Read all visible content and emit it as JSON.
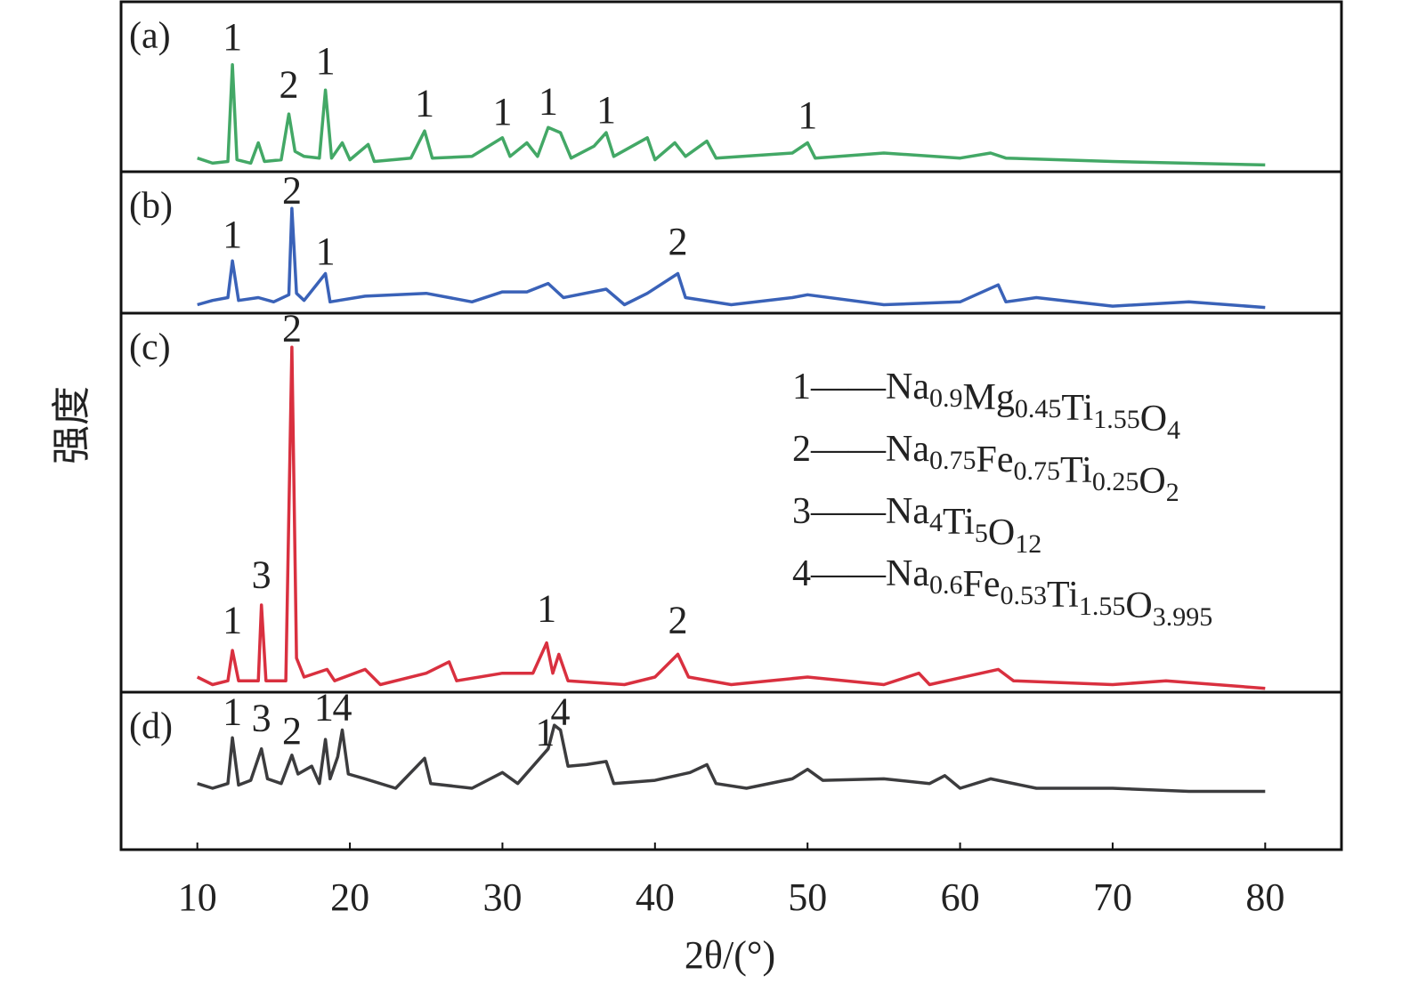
{
  "chart_data": {
    "type": "line",
    "xlabel": "2θ/(°)",
    "ylabel": "强度",
    "xlim": [
      5,
      85
    ],
    "xticks": [
      10,
      20,
      30,
      40,
      50,
      60,
      70,
      80
    ],
    "ylim": [
      0,
      100
    ],
    "panels": [
      {
        "label": "(a)",
        "color": "#43a866",
        "x": [
          10,
          11,
          12,
          12.3,
          12.6,
          13.5,
          14,
          14.4,
          15.5,
          16,
          16.4,
          17,
          18,
          18.4,
          18.8,
          19.5,
          20,
          21.2,
          21.6,
          24,
          24.9,
          25.4,
          28,
          30,
          30.5,
          31.6,
          32.3,
          33,
          33.8,
          34.5,
          36,
          36.8,
          37.3,
          39.5,
          40,
          41.3,
          42,
          43.4,
          44,
          49,
          50,
          50.5,
          55,
          60,
          62,
          63,
          70,
          80
        ],
        "values": [
          8,
          5,
          6,
          63,
          7,
          5,
          17,
          6,
          7,
          34,
          12,
          9,
          8,
          48,
          8,
          17,
          7,
          16,
          6,
          8,
          24,
          8,
          9,
          20,
          9,
          17,
          9,
          26,
          23,
          8,
          15,
          23,
          9,
          20,
          7,
          17,
          9,
          18,
          8,
          11,
          17,
          8,
          11,
          8,
          11,
          8,
          6,
          4
        ],
        "annotations": [
          {
            "text": "1",
            "x": 12.3,
            "y": 77
          },
          {
            "text": "2",
            "x": 16,
            "y": 49
          },
          {
            "text": "1",
            "x": 18.4,
            "y": 63
          },
          {
            "text": "1",
            "x": 24.9,
            "y": 38
          },
          {
            "text": "1",
            "x": 30,
            "y": 33
          },
          {
            "text": "1",
            "x": 33,
            "y": 39
          },
          {
            "text": "1",
            "x": 36.8,
            "y": 34
          },
          {
            "text": "1",
            "x": 50,
            "y": 31
          }
        ]
      },
      {
        "label": "(b)",
        "color": "#3a62b8",
        "x": [
          10,
          11,
          12,
          12.3,
          12.7,
          14,
          15,
          16,
          16.2,
          16.5,
          17,
          18.4,
          18.7,
          21,
          25,
          28,
          30,
          31.6,
          33,
          34,
          36.8,
          38,
          39.5,
          41.5,
          42,
          45,
          49,
          50,
          55,
          60,
          62.5,
          63,
          65,
          70,
          75,
          80
        ],
        "values": [
          6,
          9,
          11,
          37,
          9,
          11,
          8,
          13,
          74,
          14,
          9,
          28,
          8,
          12,
          14,
          8,
          15,
          15,
          21,
          11,
          17,
          6,
          14,
          28,
          11,
          6,
          11,
          13,
          6,
          8,
          20,
          8,
          11,
          5,
          8,
          4
        ],
        "annotations": [
          {
            "text": "1",
            "x": 12.3,
            "y": 53
          },
          {
            "text": "2",
            "x": 16.2,
            "y": 84
          },
          {
            "text": "1",
            "x": 18.4,
            "y": 41
          },
          {
            "text": "2",
            "x": 41.5,
            "y": 48
          }
        ]
      },
      {
        "label": "(c)",
        "color": "#d9303f",
        "x": [
          10,
          11,
          12,
          12.3,
          12.7,
          14,
          14.2,
          14.5,
          15.8,
          16.2,
          16.5,
          17,
          18.5,
          19,
          21,
          22,
          25,
          26.5,
          27,
          30,
          32,
          32.9,
          33.3,
          33.7,
          34.3,
          38,
          40,
          41.5,
          42.2,
          45,
          50,
          55,
          57.3,
          58,
          62.5,
          63.5,
          70,
          73.5,
          80
        ],
        "values": [
          4,
          2,
          3,
          11,
          3,
          3,
          23,
          3,
          3,
          91,
          9,
          4,
          6,
          3,
          6,
          2,
          5,
          8,
          3,
          5,
          5,
          13,
          5,
          10,
          3,
          2,
          4,
          10,
          4,
          2,
          4,
          2,
          5,
          2,
          6,
          3,
          2,
          3,
          1
        ],
        "annotations": [
          {
            "text": "1",
            "x": 12.3,
            "y": 18
          },
          {
            "text": "3",
            "x": 14.2,
            "y": 30
          },
          {
            "text": "2",
            "x": 16.2,
            "y": 95
          },
          {
            "text": "1",
            "x": 32.9,
            "y": 21
          },
          {
            "text": "2",
            "x": 41.5,
            "y": 18
          }
        ],
        "legend": [
          {
            "label": "1——",
            "symbols": [
              "Na",
              "Mg",
              "Ti",
              "O"
            ],
            "subscripts": [
              "0.9",
              "0.45",
              "1.55",
              "4"
            ]
          },
          {
            "label": "2——",
            "symbols": [
              "Na",
              "Fe",
              "Ti",
              "O"
            ],
            "subscripts": [
              "0.75",
              "0.75",
              "0.25",
              "2"
            ]
          },
          {
            "label": "3——",
            "symbols": [
              "Na",
              "Ti",
              "O"
            ],
            "subscripts": [
              "4",
              "5",
              "12"
            ]
          },
          {
            "label": "4——",
            "symbols": [
              "Na",
              "Fe",
              "Ti",
              "O"
            ],
            "subscripts": [
              "0.6",
              "0.53",
              "1.55",
              "3.995"
            ]
          }
        ]
      },
      {
        "label": "(d)",
        "color": "#3c3c3e",
        "x": [
          10,
          11,
          12,
          12.3,
          12.7,
          13.5,
          14.2,
          14.6,
          15.5,
          16.2,
          16.6,
          17.5,
          18,
          18.4,
          18.7,
          19.2,
          19.5,
          19.9,
          21,
          23,
          24.9,
          25.3,
          28,
          30,
          31,
          33,
          33.4,
          33.8,
          34.3,
          35.5,
          36.8,
          37.3,
          40,
          42.3,
          43.4,
          44,
          46,
          49,
          50,
          51,
          55,
          58,
          59,
          60,
          62,
          65,
          70,
          75,
          80
        ],
        "values": [
          42,
          39,
          42,
          71,
          41,
          44,
          64,
          45,
          42,
          60,
          48,
          53,
          42,
          70,
          45,
          59,
          76,
          48,
          45,
          39,
          58,
          42,
          39,
          49,
          42,
          64,
          79,
          76,
          53,
          54,
          56,
          42,
          44,
          49,
          54,
          42,
          39,
          45,
          51,
          44,
          45,
          42,
          47,
          39,
          45,
          39,
          39,
          37,
          37
        ],
        "annotations": [
          {
            "text": "1",
            "x": 12.3,
            "y": 85
          },
          {
            "text": "3",
            "x": 14.2,
            "y": 81
          },
          {
            "text": "2",
            "x": 16.2,
            "y": 73
          },
          {
            "text": "1",
            "x": 18.3,
            "y": 88
          },
          {
            "text": "4",
            "x": 19.5,
            "y": 88
          },
          {
            "text": "1",
            "x": 32.8,
            "y": 72
          },
          {
            "text": "4",
            "x": 33.8,
            "y": 85
          }
        ]
      }
    ]
  }
}
